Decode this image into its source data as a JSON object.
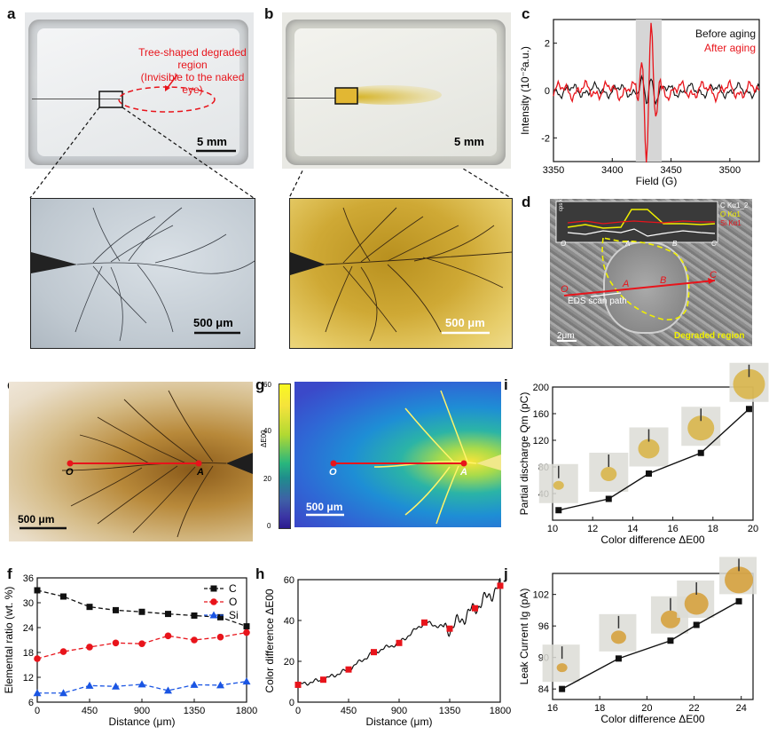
{
  "panels": {
    "a": {
      "label": "a",
      "annotation_line1": "Tree-shaped degraded region",
      "annotation_line2": "(Invisible to the naked eye)",
      "scalebar_top": "5 mm",
      "scalebar_zoom": "500 μm"
    },
    "b": {
      "label": "b",
      "scalebar_top": "5 mm",
      "scalebar_zoom": "500 μm"
    },
    "c": {
      "label": "c"
    },
    "d": {
      "label": "d",
      "legend": [
        "C Kα1_2",
        "O Kα1",
        "Si Kα1"
      ],
      "point_labels": [
        "O",
        "A",
        "B",
        "C"
      ],
      "eds_label": "EDS scan path",
      "region_label": "Degraded region",
      "scalebar": "2μm",
      "inset_ylabel": "cps x 10³"
    },
    "e": {
      "label": "e",
      "point_o": "O",
      "point_a": "A",
      "scalebar": "500 μm"
    },
    "f": {
      "label": "f"
    },
    "g": {
      "label": "g",
      "point_o": "O",
      "point_a": "A",
      "scalebar": "500 μm",
      "colorbar_ticks": [
        "60",
        "40",
        "20",
        "0"
      ],
      "colorbar_label": "ΔE00"
    },
    "h": {
      "label": "h"
    },
    "i": {
      "label": "i"
    },
    "j": {
      "label": "j"
    }
  },
  "chart_data": [
    {
      "panel": "c",
      "type": "line",
      "xlabel": "Field (G)",
      "ylabel": "Intensity (10⁻²a.u.)",
      "xlim": [
        3350,
        3525
      ],
      "ylim": [
        -3,
        3
      ],
      "xticks": [
        3350,
        3400,
        3450,
        3500
      ],
      "yticks": [
        -2,
        0,
        2
      ],
      "shaded_range": [
        3420,
        3442
      ],
      "series": [
        {
          "name": "Before aging",
          "color": "#111111"
        },
        {
          "name": "After aging",
          "color": "#e8141b"
        }
      ]
    },
    {
      "panel": "f",
      "type": "line",
      "xlabel": "Distance (μm)",
      "ylabel": "Elemental ratio (wt. %)",
      "xlim": [
        0,
        1800
      ],
      "ylim": [
        6,
        36
      ],
      "xticks": [
        0,
        450,
        900,
        1350,
        1800
      ],
      "yticks": [
        6,
        12,
        18,
        24,
        30,
        36
      ],
      "legend": "top-right",
      "x": [
        0,
        225,
        450,
        675,
        900,
        1125,
        1350,
        1575,
        1800
      ],
      "series": [
        {
          "name": "C",
          "color": "#111111",
          "marker": "square",
          "values": [
            33,
            31.5,
            29,
            28.2,
            27.8,
            27.3,
            26.9,
            26.5,
            24.3
          ]
        },
        {
          "name": "O",
          "color": "#e8141b",
          "marker": "circle",
          "values": [
            16.5,
            18.2,
            19.3,
            20.3,
            20.1,
            22,
            21,
            21.7,
            22.8
          ]
        },
        {
          "name": "Si",
          "color": "#1a55e3",
          "marker": "triangle",
          "values": [
            8.2,
            8.2,
            10,
            9.8,
            10.3,
            8.8,
            10.2,
            10.1,
            11
          ]
        }
      ]
    },
    {
      "panel": "h",
      "type": "line",
      "xlabel": "Distance (μm)",
      "ylabel": "Color difference ΔE00",
      "xlim": [
        0,
        1800
      ],
      "ylim": [
        0,
        60
      ],
      "xticks": [
        0,
        450,
        900,
        1350,
        1800
      ],
      "yticks": [
        0,
        20,
        40,
        60
      ],
      "markers_x": [
        0,
        225,
        450,
        675,
        900,
        1125,
        1350,
        1575,
        1800
      ],
      "markers_y": [
        8.5,
        11,
        16,
        24.5,
        29,
        39,
        36,
        46,
        57
      ]
    },
    {
      "panel": "i",
      "type": "line",
      "xlabel": "Color difference ΔE00",
      "ylabel": "Partial discharge Qm (pC)",
      "xlim": [
        10,
        20
      ],
      "ylim": [
        0,
        200
      ],
      "xticks": [
        10,
        12,
        14,
        16,
        18,
        20
      ],
      "yticks": [
        40,
        80,
        120,
        160,
        200
      ],
      "x": [
        10.3,
        12.8,
        14.8,
        17.4,
        19.8
      ],
      "values": [
        15,
        32,
        70,
        101,
        167
      ]
    },
    {
      "panel": "j",
      "type": "line",
      "xlabel": "Color difference ΔE00",
      "ylabel": "Leak Current Ig (pA)",
      "xlim": [
        16,
        24.5
      ],
      "ylim": [
        82,
        106
      ],
      "xticks": [
        16,
        18,
        20,
        22,
        24
      ],
      "yticks": [
        84,
        90,
        96,
        102
      ],
      "x": [
        16.4,
        18.8,
        21,
        22.1,
        23.9
      ],
      "values": [
        84,
        89.8,
        93.2,
        96.2,
        100.7
      ]
    }
  ]
}
